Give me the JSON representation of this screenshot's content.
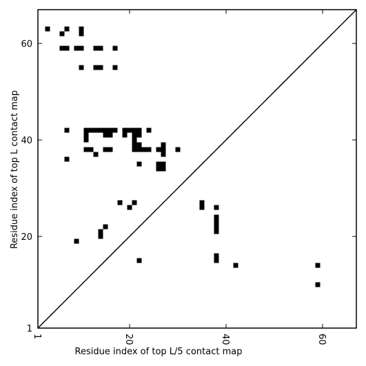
{
  "chart_data": {
    "type": "heatmap",
    "xlabel": "Residue index of top L/5 contact map",
    "ylabel": "Residue index of top L contact map",
    "xlim": [
      1,
      67
    ],
    "ylim": [
      1,
      67
    ],
    "x_ticks": [
      {
        "value": 1,
        "label": "1"
      },
      {
        "value": 20,
        "label": "20"
      },
      {
        "value": 40,
        "label": "40"
      },
      {
        "value": 60,
        "label": "60"
      }
    ],
    "y_ticks": [
      {
        "value": 1,
        "label": "1"
      },
      {
        "value": 20,
        "label": "20"
      },
      {
        "value": 40,
        "label": "40"
      },
      {
        "value": 60,
        "label": "60"
      }
    ],
    "diagonal": true,
    "cell_color": "#000000",
    "background_color": "#ffffff",
    "contacts": [
      [
        3,
        63
      ],
      [
        6,
        62
      ],
      [
        7,
        63
      ],
      [
        10,
        62
      ],
      [
        10,
        63
      ],
      [
        6,
        59
      ],
      [
        7,
        59
      ],
      [
        9,
        59
      ],
      [
        10,
        59
      ],
      [
        13,
        59
      ],
      [
        14,
        59
      ],
      [
        17,
        59
      ],
      [
        10,
        55
      ],
      [
        13,
        55
      ],
      [
        14,
        55
      ],
      [
        17,
        55
      ],
      [
        7,
        42
      ],
      [
        11,
        42
      ],
      [
        12,
        42
      ],
      [
        13,
        42
      ],
      [
        14,
        42
      ],
      [
        15,
        42
      ],
      [
        16,
        42
      ],
      [
        17,
        42
      ],
      [
        19,
        42
      ],
      [
        20,
        42
      ],
      [
        21,
        42
      ],
      [
        22,
        42
      ],
      [
        24,
        42
      ],
      [
        11,
        41
      ],
      [
        15,
        41
      ],
      [
        16,
        41
      ],
      [
        19,
        41
      ],
      [
        21,
        41
      ],
      [
        22,
        41
      ],
      [
        11,
        40
      ],
      [
        21,
        40
      ],
      [
        21,
        39
      ],
      [
        22,
        39
      ],
      [
        27,
        39
      ],
      [
        11,
        38
      ],
      [
        12,
        38
      ],
      [
        15,
        38
      ],
      [
        16,
        38
      ],
      [
        21,
        38
      ],
      [
        22,
        38
      ],
      [
        23,
        38
      ],
      [
        24,
        38
      ],
      [
        26,
        38
      ],
      [
        27,
        38
      ],
      [
        30,
        38
      ],
      [
        13,
        37
      ],
      [
        27,
        37
      ],
      [
        7,
        36
      ],
      [
        22,
        35
      ],
      [
        26,
        35
      ],
      [
        27,
        35
      ],
      [
        26,
        34
      ],
      [
        27,
        34
      ],
      [
        18,
        27
      ],
      [
        21,
        27
      ],
      [
        35,
        27
      ],
      [
        20,
        26
      ],
      [
        35,
        26
      ],
      [
        38,
        26
      ],
      [
        38,
        24
      ],
      [
        38,
        23
      ],
      [
        38,
        22
      ],
      [
        15,
        22
      ],
      [
        38,
        21
      ],
      [
        14,
        21
      ],
      [
        14,
        20
      ],
      [
        9,
        19
      ],
      [
        38,
        16
      ],
      [
        22,
        15
      ],
      [
        38,
        15
      ],
      [
        42,
        14
      ],
      [
        59,
        14
      ],
      [
        59,
        10
      ]
    ]
  }
}
